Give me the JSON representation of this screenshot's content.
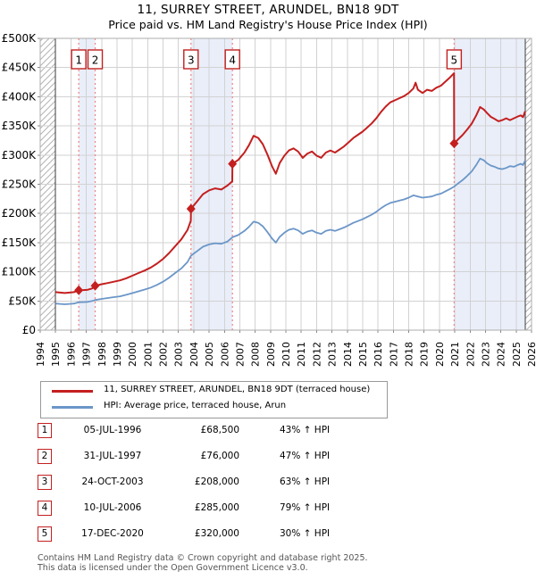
{
  "title": {
    "line1": "11, SURREY STREET, ARUNDEL, BN18 9DT",
    "line2": "Price paid vs. HM Land Registry's House Price Index (HPI)"
  },
  "chart_data": {
    "type": "line",
    "x_axis": {
      "labels": [
        "1994",
        "1995",
        "1996",
        "1997",
        "1998",
        "1999",
        "2000",
        "2001",
        "2002",
        "2003",
        "2004",
        "2005",
        "2006",
        "2007",
        "2008",
        "2009",
        "2010",
        "2011",
        "2012",
        "2013",
        "2014",
        "2015",
        "2016",
        "2017",
        "2018",
        "2019",
        "2020",
        "2021",
        "2022",
        "2023",
        "2024",
        "2025",
        "2026"
      ],
      "range": [
        1994,
        2026
      ]
    },
    "y_axis": {
      "labels": [
        "£0",
        "£50K",
        "£100K",
        "£150K",
        "£200K",
        "£250K",
        "£300K",
        "£350K",
        "£400K",
        "£450K",
        "£500K"
      ],
      "range": [
        0,
        500000
      ],
      "tick_step": 50000
    },
    "grid": true,
    "hpi_data_range": [
      1995.0,
      2025.58
    ],
    "ownership_bands": [
      [
        1996.51,
        1997.58
      ],
      [
        2003.82,
        2006.52
      ],
      [
        2020.96,
        2025.58
      ]
    ],
    "colors": {
      "property": "#c41f1f",
      "hpi": "#6b96c8",
      "sale_line": "#f28282",
      "band": "#e9eef9",
      "grid": "#d2d2d2",
      "border": "#adadad",
      "spine": "#3c3c3c",
      "hatch": "#b3b3b3",
      "num_box_border": "#c22120"
    },
    "series": [
      {
        "name": "11, SURREY STREET, ARUNDEL, BN18 9DT (terraced house)",
        "color": "#c41f1f",
        "points": [
          [
            1995.0,
            65100
          ],
          [
            1995.3,
            64400
          ],
          [
            1995.6,
            63600
          ],
          [
            1995.9,
            64400
          ],
          [
            1996.2,
            65100
          ],
          [
            1996.51,
            68500
          ],
          [
            1996.8,
            68600
          ],
          [
            1997.1,
            69300
          ],
          [
            1997.4,
            71500
          ],
          [
            1997.58,
            76000
          ],
          [
            1998.0,
            78700
          ],
          [
            1998.4,
            80800
          ],
          [
            1998.8,
            83100
          ],
          [
            1999.2,
            85300
          ],
          [
            1999.6,
            88900
          ],
          [
            2000.0,
            93300
          ],
          [
            2000.4,
            97800
          ],
          [
            2000.8,
            102200
          ],
          [
            2001.2,
            107300
          ],
          [
            2001.6,
            113900
          ],
          [
            2002.0,
            122000
          ],
          [
            2002.4,
            132300
          ],
          [
            2002.8,
            144100
          ],
          [
            2003.2,
            155800
          ],
          [
            2003.6,
            172000
          ],
          [
            2003.81,
            187600
          ],
          [
            2003.82,
            208000
          ],
          [
            2004.2,
            220100
          ],
          [
            2004.6,
            233100
          ],
          [
            2005.0,
            239600
          ],
          [
            2005.4,
            242900
          ],
          [
            2005.8,
            241000
          ],
          [
            2006.2,
            247800
          ],
          [
            2006.51,
            255000
          ],
          [
            2006.52,
            285000
          ],
          [
            2006.9,
            291800
          ],
          [
            2007.3,
            304300
          ],
          [
            2007.6,
            316900
          ],
          [
            2007.9,
            333000
          ],
          [
            2008.2,
            329400
          ],
          [
            2008.5,
            318600
          ],
          [
            2008.8,
            300800
          ],
          [
            2009.1,
            280900
          ],
          [
            2009.35,
            268000
          ],
          [
            2009.6,
            286400
          ],
          [
            2009.9,
            299000
          ],
          [
            2010.2,
            307900
          ],
          [
            2010.5,
            311500
          ],
          [
            2010.8,
            306100
          ],
          [
            2011.1,
            295200
          ],
          [
            2011.4,
            302600
          ],
          [
            2011.7,
            306100
          ],
          [
            2012.0,
            299000
          ],
          [
            2012.3,
            295400
          ],
          [
            2012.6,
            304300
          ],
          [
            2012.9,
            307900
          ],
          [
            2013.2,
            304300
          ],
          [
            2013.5,
            309700
          ],
          [
            2013.8,
            315100
          ],
          [
            2014.1,
            322300
          ],
          [
            2014.4,
            329400
          ],
          [
            2014.7,
            334800
          ],
          [
            2015.0,
            340200
          ],
          [
            2015.3,
            347300
          ],
          [
            2015.6,
            354500
          ],
          [
            2015.9,
            363400
          ],
          [
            2016.2,
            374200
          ],
          [
            2016.5,
            383100
          ],
          [
            2016.8,
            390300
          ],
          [
            2017.1,
            393900
          ],
          [
            2017.4,
            397500
          ],
          [
            2017.7,
            401000
          ],
          [
            2018.0,
            406400
          ],
          [
            2018.3,
            414000
          ],
          [
            2018.45,
            424000
          ],
          [
            2018.6,
            412000
          ],
          [
            2018.9,
            406400
          ],
          [
            2019.2,
            412000
          ],
          [
            2019.5,
            410000
          ],
          [
            2019.8,
            415400
          ],
          [
            2020.1,
            419000
          ],
          [
            2020.4,
            426100
          ],
          [
            2020.7,
            433300
          ],
          [
            2020.95,
            440400
          ],
          [
            2020.96,
            320000
          ],
          [
            2021.2,
            326500
          ],
          [
            2021.5,
            334300
          ],
          [
            2021.8,
            343400
          ],
          [
            2022.1,
            353800
          ],
          [
            2022.4,
            368100
          ],
          [
            2022.65,
            382400
          ],
          [
            2022.9,
            378000
          ],
          [
            2023.1,
            372000
          ],
          [
            2023.35,
            365500
          ],
          [
            2023.6,
            362000
          ],
          [
            2023.85,
            358000
          ],
          [
            2024.1,
            360000
          ],
          [
            2024.35,
            363000
          ],
          [
            2024.6,
            360000
          ],
          [
            2024.85,
            363000
          ],
          [
            2025.1,
            366000
          ],
          [
            2025.3,
            368000
          ],
          [
            2025.45,
            365000
          ],
          [
            2025.58,
            375000
          ]
        ]
      },
      {
        "name": "HPI: Average price, terraced house, Arun",
        "color": "#6b96c8",
        "points": [
          [
            1995.0,
            45500
          ],
          [
            1995.3,
            45000
          ],
          [
            1995.6,
            44400
          ],
          [
            1995.9,
            45000
          ],
          [
            1996.2,
            45600
          ],
          [
            1996.51,
            47900
          ],
          [
            1996.8,
            48000
          ],
          [
            1997.1,
            48500
          ],
          [
            1997.4,
            50000
          ],
          [
            1997.58,
            51700
          ],
          [
            1998.0,
            53500
          ],
          [
            1998.4,
            55000
          ],
          [
            1998.8,
            56500
          ],
          [
            1999.2,
            58000
          ],
          [
            1999.6,
            60500
          ],
          [
            2000.0,
            63500
          ],
          [
            2000.4,
            66500
          ],
          [
            2000.8,
            69500
          ],
          [
            2001.2,
            73000
          ],
          [
            2001.6,
            77500
          ],
          [
            2002.0,
            83000
          ],
          [
            2002.4,
            90000
          ],
          [
            2002.8,
            98000
          ],
          [
            2003.2,
            106000
          ],
          [
            2003.6,
            117000
          ],
          [
            2003.82,
            127600
          ],
          [
            2004.2,
            135000
          ],
          [
            2004.6,
            143000
          ],
          [
            2005.0,
            147000
          ],
          [
            2005.4,
            149000
          ],
          [
            2005.8,
            148000
          ],
          [
            2006.2,
            152000
          ],
          [
            2006.52,
            159200
          ],
          [
            2006.9,
            163000
          ],
          [
            2007.3,
            170000
          ],
          [
            2007.6,
            177000
          ],
          [
            2007.9,
            186000
          ],
          [
            2008.2,
            184000
          ],
          [
            2008.5,
            178000
          ],
          [
            2008.8,
            168000
          ],
          [
            2009.1,
            157000
          ],
          [
            2009.35,
            150000
          ],
          [
            2009.6,
            160000
          ],
          [
            2009.9,
            167000
          ],
          [
            2010.2,
            172000
          ],
          [
            2010.5,
            174000
          ],
          [
            2010.8,
            171000
          ],
          [
            2011.1,
            165000
          ],
          [
            2011.4,
            169000
          ],
          [
            2011.7,
            171000
          ],
          [
            2012.0,
            167000
          ],
          [
            2012.3,
            165000
          ],
          [
            2012.6,
            170000
          ],
          [
            2012.9,
            172000
          ],
          [
            2013.2,
            170000
          ],
          [
            2013.5,
            173000
          ],
          [
            2013.8,
            176000
          ],
          [
            2014.1,
            180000
          ],
          [
            2014.4,
            184000
          ],
          [
            2014.7,
            187000
          ],
          [
            2015.0,
            190000
          ],
          [
            2015.3,
            194000
          ],
          [
            2015.6,
            198000
          ],
          [
            2015.9,
            203000
          ],
          [
            2016.2,
            209000
          ],
          [
            2016.5,
            214000
          ],
          [
            2016.8,
            218000
          ],
          [
            2017.1,
            220000
          ],
          [
            2017.4,
            222000
          ],
          [
            2017.7,
            224000
          ],
          [
            2018.0,
            227000
          ],
          [
            2018.3,
            231000
          ],
          [
            2018.6,
            229000
          ],
          [
            2018.9,
            227000
          ],
          [
            2019.2,
            228000
          ],
          [
            2019.5,
            229000
          ],
          [
            2019.8,
            232000
          ],
          [
            2020.1,
            234000
          ],
          [
            2020.4,
            238000
          ],
          [
            2020.7,
            242000
          ],
          [
            2020.96,
            246000
          ],
          [
            2021.2,
            251000
          ],
          [
            2021.5,
            257000
          ],
          [
            2021.8,
            264000
          ],
          [
            2022.1,
            272000
          ],
          [
            2022.4,
            283000
          ],
          [
            2022.65,
            294000
          ],
          [
            2022.9,
            291000
          ],
          [
            2023.1,
            286000
          ],
          [
            2023.35,
            282000
          ],
          [
            2023.6,
            280000
          ],
          [
            2023.85,
            277000
          ],
          [
            2024.1,
            276000
          ],
          [
            2024.35,
            278000
          ],
          [
            2024.6,
            281000
          ],
          [
            2024.85,
            280000
          ],
          [
            2025.1,
            283000
          ],
          [
            2025.3,
            285000
          ],
          [
            2025.45,
            283000
          ],
          [
            2025.58,
            290000
          ]
        ]
      }
    ],
    "sales": [
      {
        "n": "1",
        "x": 1996.51,
        "price": 68500,
        "date": "05-JUL-1996",
        "price_label": "£68,500",
        "hpi_diff": "43% ↑ HPI"
      },
      {
        "n": "2",
        "x": 1997.58,
        "price": 76000,
        "date": "31-JUL-1997",
        "price_label": "£76,000",
        "hpi_diff": "47% ↑ HPI"
      },
      {
        "n": "3",
        "x": 2003.82,
        "price": 208000,
        "date": "24-OCT-2003",
        "price_label": "£208,000",
        "hpi_diff": "63% ↑ HPI"
      },
      {
        "n": "4",
        "x": 2006.52,
        "price": 285000,
        "date": "10-JUL-2006",
        "price_label": "£285,000",
        "hpi_diff": "79% ↑ HPI"
      },
      {
        "n": "5",
        "x": 2020.96,
        "price": 320000,
        "date": "17-DEC-2020",
        "price_label": "£320,000",
        "hpi_diff": "30% ↑ HPI"
      }
    ]
  },
  "legend": {
    "entries": [
      {
        "label": "11, SURREY STREET, ARUNDEL, BN18 9DT (terraced house)",
        "color": "#c41f1f"
      },
      {
        "label": "HPI: Average price, terraced house, Arun",
        "color": "#6b96c8"
      }
    ]
  },
  "footer": {
    "line1": "Contains HM Land Registry data © Crown copyright and database right 2025.",
    "line2": "This data is licensed under the Open Government Licence v3.0."
  }
}
